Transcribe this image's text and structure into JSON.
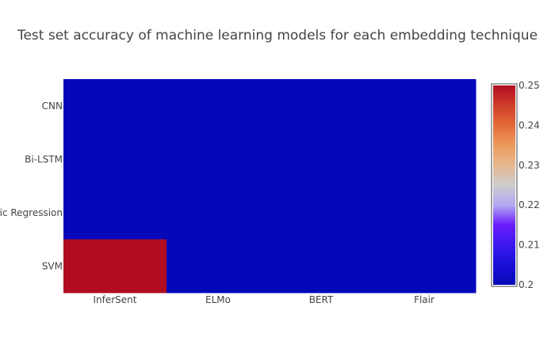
{
  "chart_data": {
    "type": "heatmap",
    "title": "Test set accuracy of machine learning models for each embedding technique",
    "x_categories": [
      "InferSent",
      "ELMo",
      "BERT",
      "Flair"
    ],
    "y_categories": [
      "CNN",
      "Bi-LSTM",
      "Logistic Regression",
      "SVM"
    ],
    "z": [
      [
        0.2,
        0.2,
        0.2,
        0.2
      ],
      [
        0.2,
        0.2,
        0.2,
        0.2
      ],
      [
        0.2,
        0.2,
        0.2,
        0.2
      ],
      [
        0.25,
        0.2,
        0.2,
        0.2
      ]
    ],
    "zlim": [
      0.2,
      0.25
    ],
    "colorbar_ticks": [
      0.2,
      0.21,
      0.22,
      0.23,
      0.24,
      0.25
    ],
    "colorbar_tick_labels": [
      "0.2",
      "0.21",
      "0.22",
      "0.23",
      "0.24",
      "0.25"
    ],
    "colorscale": [
      [
        0.0,
        "#0508b8"
      ],
      [
        0.1,
        "#1910d8"
      ],
      [
        0.2,
        "#3c19f0"
      ],
      [
        0.3,
        "#6b1cfb"
      ],
      [
        0.4,
        "#b2a9f2"
      ],
      [
        0.5,
        "#cccccc"
      ],
      [
        0.6,
        "#e6b890"
      ],
      [
        0.7,
        "#ec9a5c"
      ],
      [
        0.8,
        "#e36b3a"
      ],
      [
        0.9,
        "#cf3e2a"
      ],
      [
        1.0,
        "#b10c1f"
      ]
    ],
    "colorbar_position": "right",
    "grid": false
  }
}
